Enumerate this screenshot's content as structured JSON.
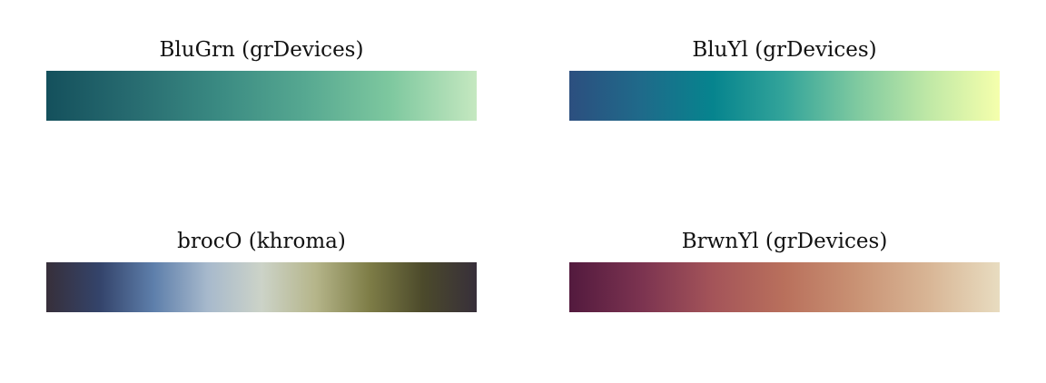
{
  "palettes": [
    {
      "title": "BluGrn (grDevices)",
      "colors": [
        "#14505c",
        "#276b70",
        "#3a8a82",
        "#56a891",
        "#7ec89f",
        "#c5e8c0"
      ]
    },
    {
      "title": "BluYl (grDevices)",
      "colors": [
        "#2c4f7f",
        "#1f6a8a",
        "#06848e",
        "#33a49a",
        "#7ec9a0",
        "#bfe8a6",
        "#f5ffac"
      ]
    },
    {
      "title": "brocO (khroma)",
      "colors": [
        "#372f3a",
        "#34446b",
        "#5e7fab",
        "#a7b9cc",
        "#ccd3c8",
        "#b5b58a",
        "#7e7d47",
        "#4c4a2b",
        "#372f3a"
      ]
    },
    {
      "title": "BrwnYl (grDevices)",
      "colors": [
        "#531a3e",
        "#7b3350",
        "#a45459",
        "#b9705c",
        "#c99274",
        "#d8b595",
        "#e8dcc0"
      ]
    }
  ]
}
